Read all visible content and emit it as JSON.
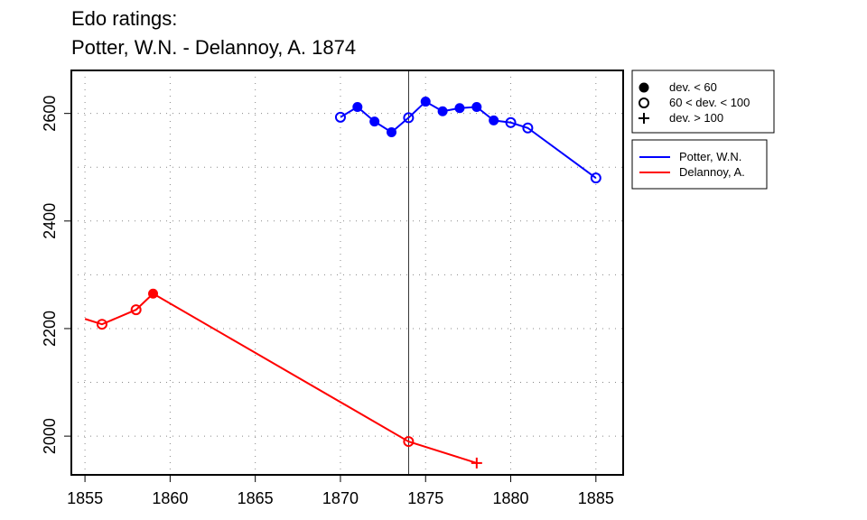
{
  "chart_data": {
    "type": "line",
    "title_line1": "Edo ratings:",
    "title_line2": "Potter, W.N. - Delannoy, A. 1874",
    "xlabel": "",
    "ylabel": "",
    "xlim": [
      1854.2,
      1886.6
    ],
    "ylim": [
      1928,
      2680
    ],
    "x_ticks": [
      1855,
      1860,
      1865,
      1870,
      1875,
      1880,
      1885
    ],
    "y_ticks": [
      2000,
      2200,
      2400,
      2600
    ],
    "y_grid": [
      1900,
      2000,
      2100,
      2200,
      2300,
      2400,
      2500,
      2600
    ],
    "grid": true,
    "reference_line_x": 1874,
    "legend_markers": [
      {
        "label": "dev. < 60",
        "marker": "filled"
      },
      {
        "label": "60 < dev. < 100",
        "marker": "open"
      },
      {
        "label": "dev. > 100",
        "marker": "plus"
      }
    ],
    "series": [
      {
        "name": "Potter, W.N.",
        "color": "#0000ff",
        "points": [
          {
            "x": 1870,
            "y": 2593,
            "m": "open"
          },
          {
            "x": 1871,
            "y": 2612,
            "m": "filled"
          },
          {
            "x": 1872,
            "y": 2585,
            "m": "filled"
          },
          {
            "x": 1873,
            "y": 2565,
            "m": "filled"
          },
          {
            "x": 1874,
            "y": 2592,
            "m": "open"
          },
          {
            "x": 1875,
            "y": 2622,
            "m": "filled"
          },
          {
            "x": 1876,
            "y": 2604,
            "m": "filled"
          },
          {
            "x": 1877,
            "y": 2610,
            "m": "filled"
          },
          {
            "x": 1878,
            "y": 2612,
            "m": "filled"
          },
          {
            "x": 1879,
            "y": 2587,
            "m": "filled"
          },
          {
            "x": 1880,
            "y": 2583,
            "m": "open"
          },
          {
            "x": 1881,
            "y": 2573,
            "m": "open"
          },
          {
            "x": 1885,
            "y": 2480,
            "m": "open"
          }
        ]
      },
      {
        "name": "Delannoy, A.",
        "color": "#ff0000",
        "points": [
          {
            "x": 1855,
            "y": 2218,
            "m": "none"
          },
          {
            "x": 1856,
            "y": 2208,
            "m": "open"
          },
          {
            "x": 1858,
            "y": 2235,
            "m": "open"
          },
          {
            "x": 1859,
            "y": 2265,
            "m": "filled"
          },
          {
            "x": 1874,
            "y": 1990,
            "m": "open"
          },
          {
            "x": 1878,
            "y": 1950,
            "m": "plus"
          }
        ]
      }
    ]
  }
}
